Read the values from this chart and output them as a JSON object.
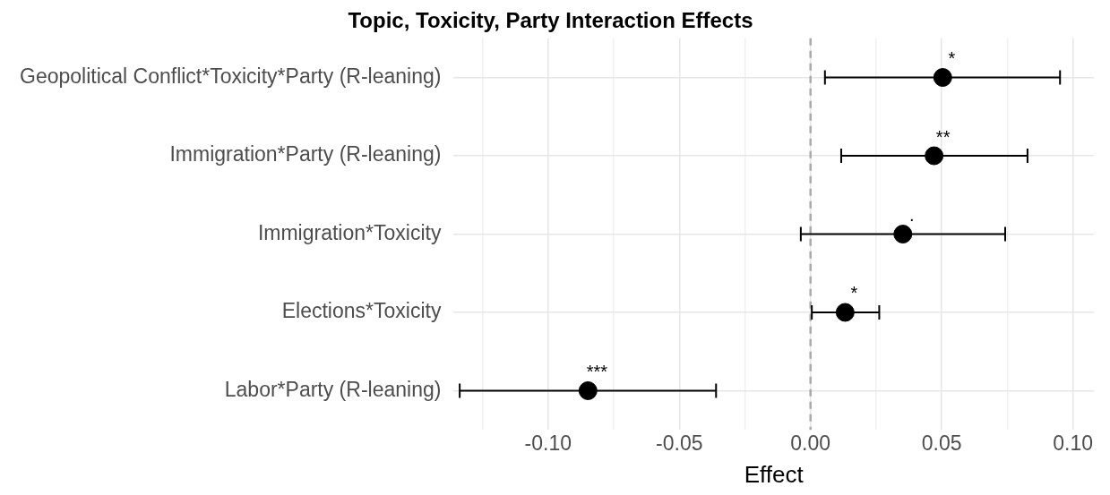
{
  "chart_data": {
    "type": "scatter",
    "orientation": "horizontal",
    "title": "Topic, Toxicity, Party Interaction Effects",
    "xlabel": "Effect",
    "categories": [
      "Geopolitical Conflict*Toxicity*Party (R-leaning)",
      "Immigration*Party (R-leaning)",
      "Immigration*Toxicity",
      "Elections*Toxicity",
      "Labor*Party (R-leaning)"
    ],
    "values": [
      0.0504,
      0.0471,
      0.0352,
      0.0132,
      -0.0848
    ],
    "errors": [
      [
        0.0055,
        0.0951
      ],
      [
        0.0117,
        0.0827
      ],
      [
        -0.0037,
        0.0742
      ],
      [
        0.0005,
        0.0262
      ],
      [
        -0.1337,
        -0.036
      ]
    ],
    "color": "#000000",
    "marker": "circle",
    "xlim": [
      -0.136,
      0.108
    ],
    "xticks": [
      {
        "value": -0.125,
        "label": null
      },
      {
        "value": -0.1,
        "label": "-0.10"
      },
      {
        "value": -0.075,
        "label": null
      },
      {
        "value": -0.05,
        "label": "-0.05"
      },
      {
        "value": -0.025,
        "label": null
      },
      {
        "value": 0,
        "label": "0.00"
      },
      {
        "value": 0.025,
        "label": null
      },
      {
        "value": 0.05,
        "label": "0.05"
      },
      {
        "value": 0.075,
        "label": null
      },
      {
        "value": 0.1,
        "label": "0.10"
      }
    ],
    "ref_lines": [
      {
        "axis": "x",
        "value": 0,
        "color": "#aaaaaa",
        "line_style": "dashed"
      }
    ],
    "annotations": [
      {
        "text": "*",
        "x": 0.0504,
        "y": "Geopolitical Conflict*Toxicity*Party (R-leaning)"
      },
      {
        "text": "**",
        "x": 0.0471,
        "y": "Immigration*Party (R-leaning)"
      },
      {
        "text": ".",
        "x": 0.0352,
        "y": "Immigration*Toxicity"
      },
      {
        "text": "*",
        "x": 0.0132,
        "y": "Elections*Toxicity"
      },
      {
        "text": "***",
        "x": -0.0848,
        "y": "Labor*Party (R-leaning)"
      }
    ],
    "grid": true,
    "legend": false
  }
}
